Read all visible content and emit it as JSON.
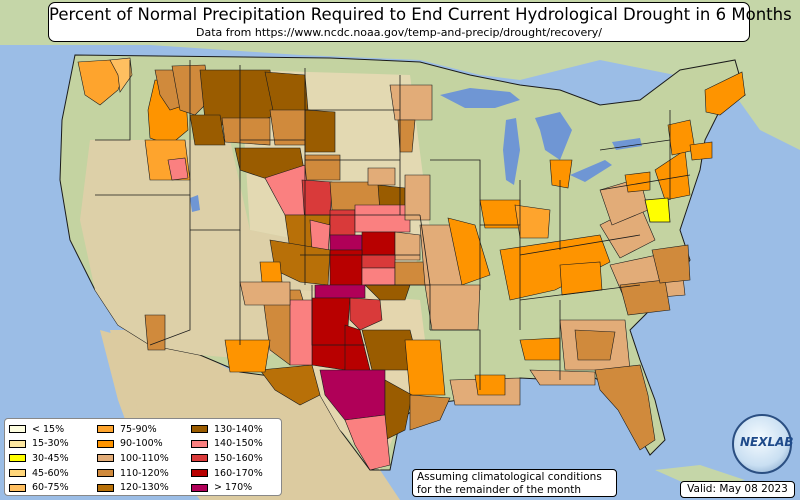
{
  "title": "Percent of Normal Precipitation Required to End Current Hydrological Drought in 6 Months",
  "subtitle": "Data from https://www.ncdc.noaa.gov/temp-and-precip/drought/recovery/",
  "legend": [
    {
      "label": "< 15%",
      "color": "#fefee0"
    },
    {
      "label": "15-30%",
      "color": "#fde7a0"
    },
    {
      "label": "30-45%",
      "color": "#ffff00"
    },
    {
      "label": "45-60%",
      "color": "#ffd67a"
    },
    {
      "label": "60-75%",
      "color": "#ffbf60"
    },
    {
      "label": "75-90%",
      "color": "#fea42d"
    },
    {
      "label": "90-100%",
      "color": "#fe9400"
    },
    {
      "label": "100-110%",
      "color": "#e2ac78"
    },
    {
      "label": "110-120%",
      "color": "#d08a3c"
    },
    {
      "label": "120-130%",
      "color": "#b87008"
    },
    {
      "label": "130-140%",
      "color": "#9a5c00"
    },
    {
      "label": "140-150%",
      "color": "#fa8080"
    },
    {
      "label": "150-160%",
      "color": "#d93a3a"
    },
    {
      "label": "160-170%",
      "color": "#b80000"
    },
    {
      "label": "> 170%",
      "color": "#b00058"
    }
  ],
  "note": {
    "line1": "Assuming climatological conditions",
    "line2": "for the remainder of the month"
  },
  "valid_label": "Valid: May 08 2023",
  "logo_text": "NEXLAB",
  "colors": {
    "ocean": "#9bbde6",
    "land_green": "#b9d3a0",
    "land_tan": "#dfd2ac",
    "lake": "#6f96d4",
    "border": "#1a1a1a"
  }
}
